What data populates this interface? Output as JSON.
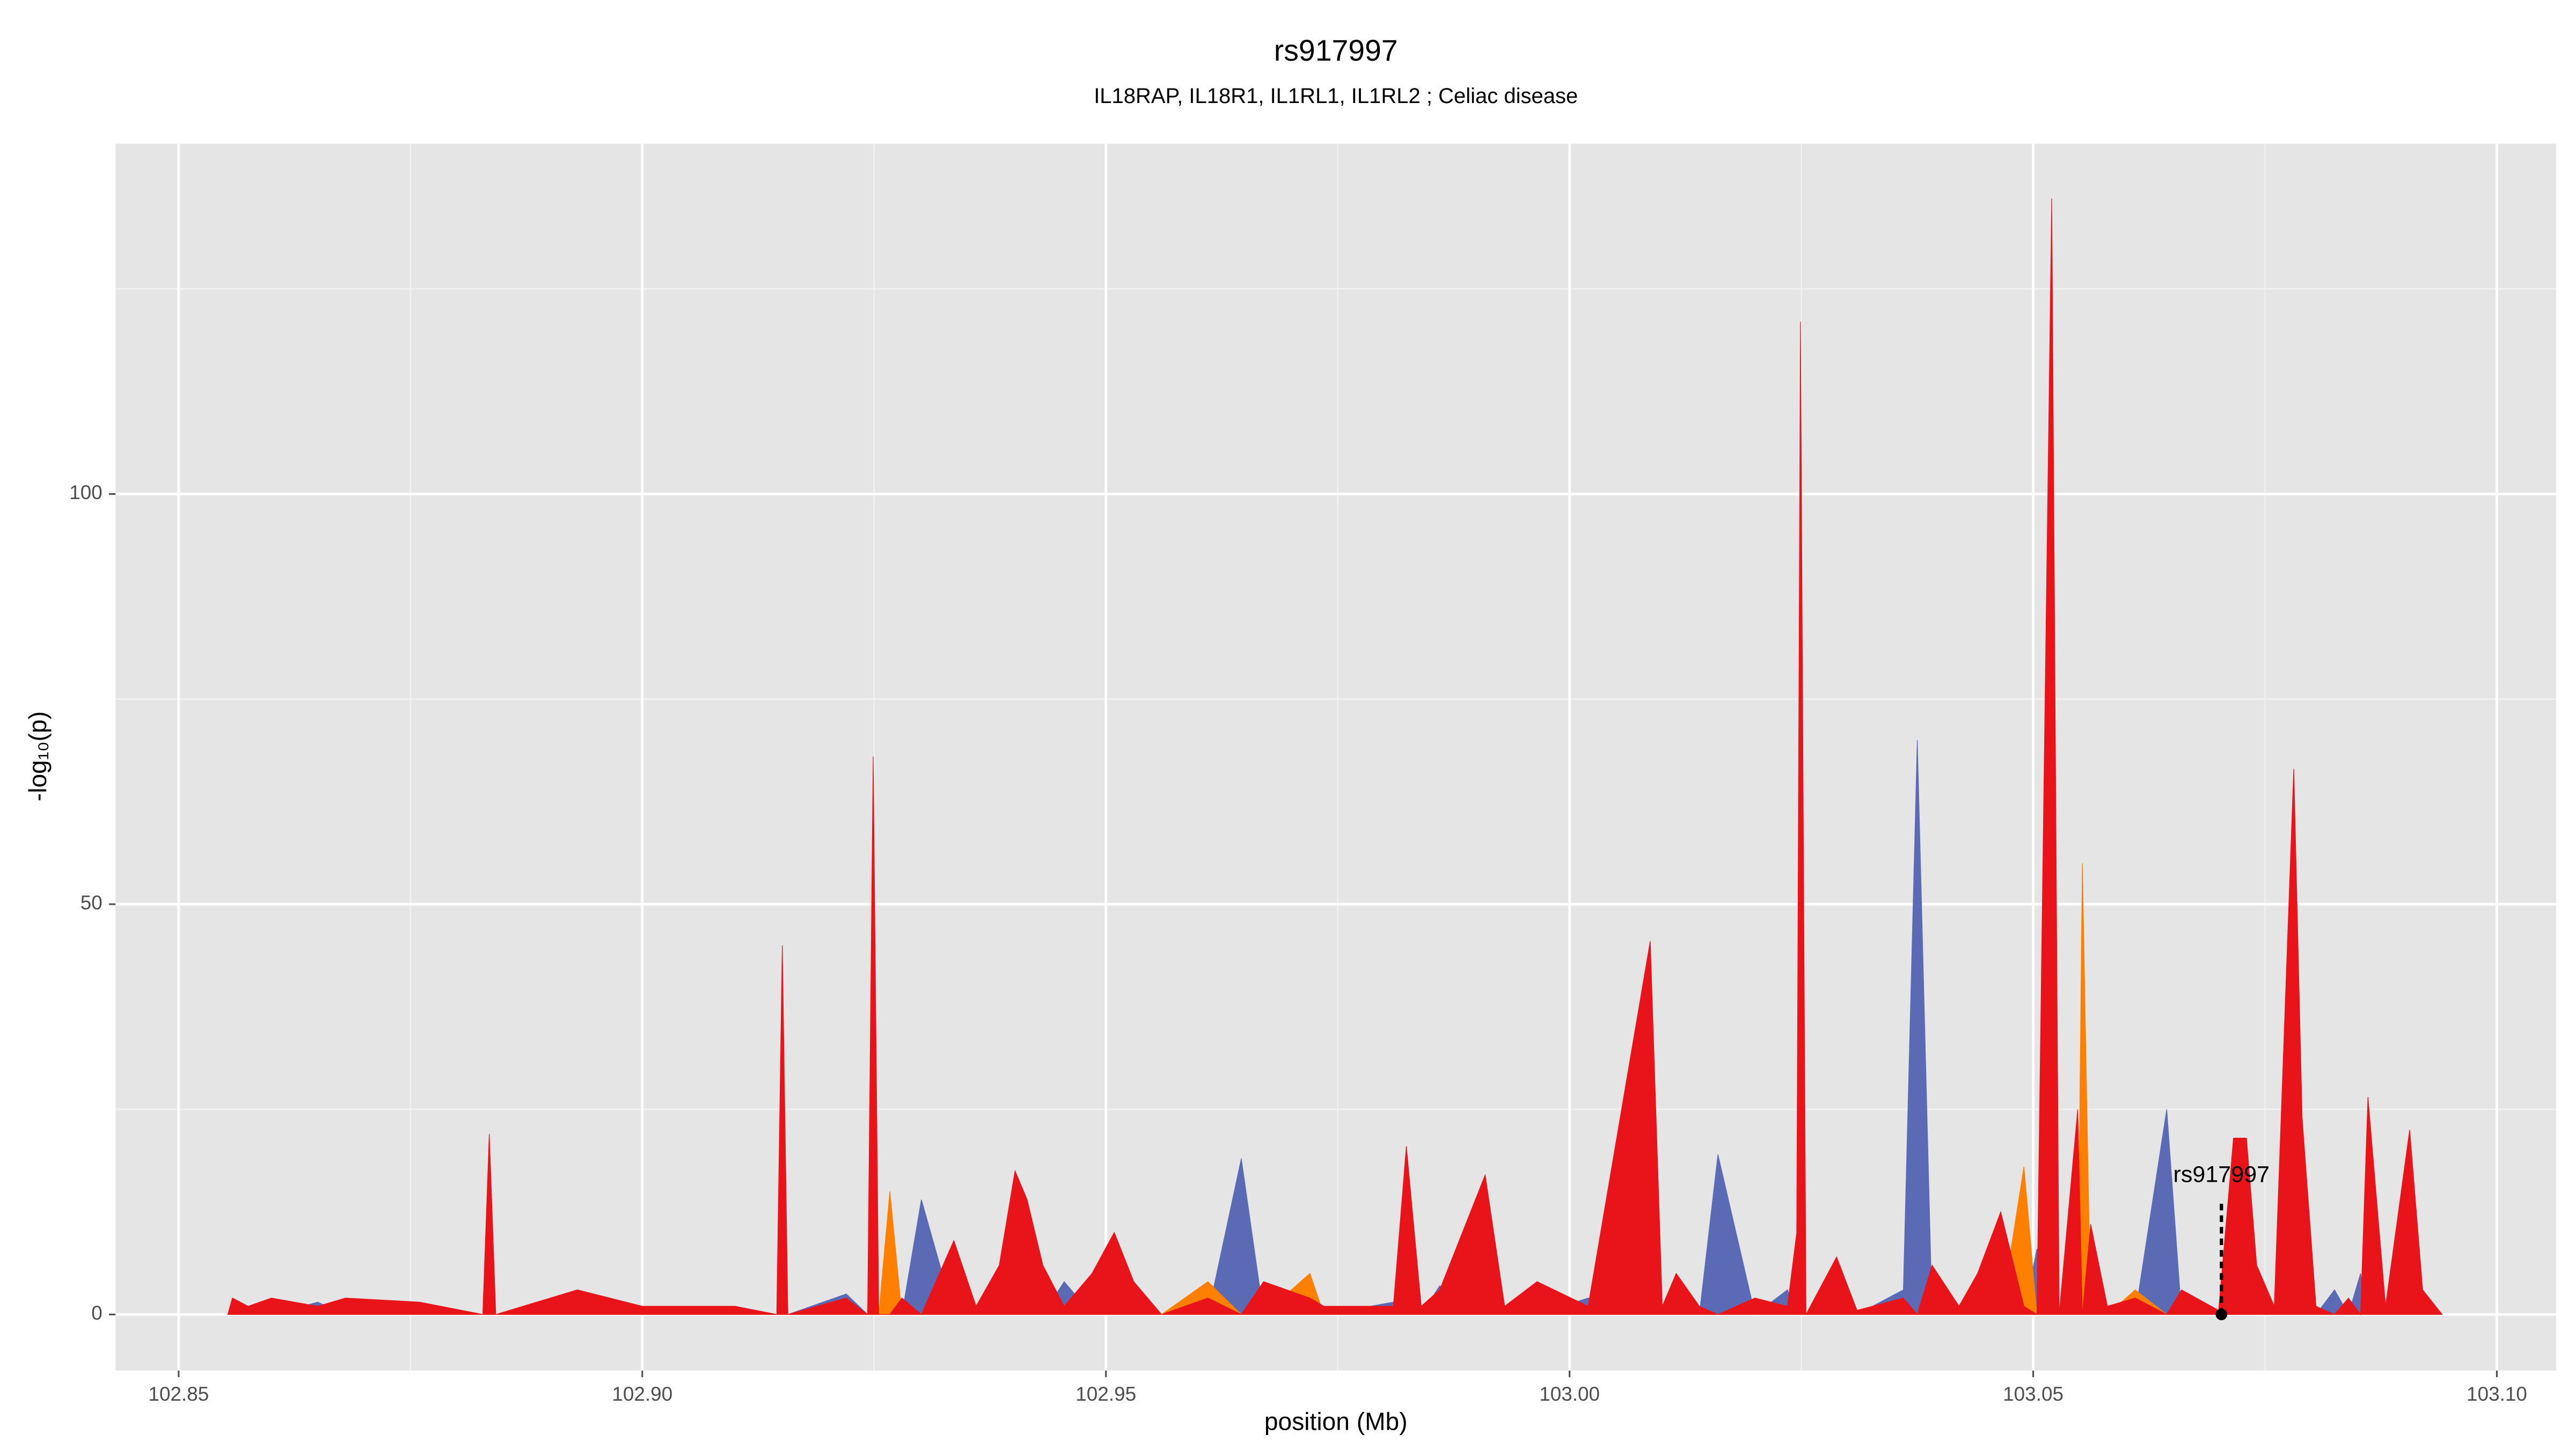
{
  "chart_data": {
    "type": "area",
    "title": "rs917997",
    "subtitle": "IL18RAP, IL18R1, IL1RL1, IL1RL2 ; Celiac disease",
    "x_label": "position (Mb)",
    "y_label": "-log₁₀(p)",
    "xlim": [
      102.8432,
      103.1064
    ],
    "ylim": [
      -6.84,
      142.7
    ],
    "xticks": [
      {
        "value": 102.85,
        "label": "102.85"
      },
      {
        "value": 102.9,
        "label": "102.90"
      },
      {
        "value": 102.95,
        "label": "102.95"
      },
      {
        "value": 103.0,
        "label": "103.00"
      },
      {
        "value": 103.05,
        "label": "103.05"
      },
      {
        "value": 103.1,
        "label": "103.10"
      }
    ],
    "yticks": [
      0,
      50,
      100
    ],
    "minor_xticks": [
      102.875,
      102.925,
      102.975,
      103.025,
      103.075
    ],
    "minor_yticks": [
      25,
      75,
      125
    ],
    "grid": true,
    "background": "#e5e5e5",
    "x": [
      102.8553,
      102.8558,
      102.8575,
      102.86,
      102.865,
      102.868,
      102.876,
      102.8828,
      102.8835,
      102.8842,
      102.893,
      102.9,
      102.91,
      102.9145,
      102.9151,
      102.9157,
      102.922,
      102.9243,
      102.9249,
      102.9255,
      102.9267,
      102.928,
      102.9301,
      102.9336,
      102.936,
      102.9385,
      102.9402,
      102.9415,
      102.9432,
      102.9455,
      102.9485,
      102.9509,
      102.953,
      102.956,
      102.961,
      102.9646,
      102.967,
      102.972,
      102.9735,
      102.981,
      102.9824,
      102.984,
      102.986,
      102.9909,
      102.993,
      102.9965,
      103.002,
      103.0087,
      103.01,
      103.0115,
      103.014,
      103.016,
      103.02,
      103.0235,
      103.0245,
      103.0249,
      103.0255,
      103.0288,
      103.031,
      103.036,
      103.0375,
      103.0391,
      103.042,
      103.044,
      103.0465,
      103.049,
      103.0504,
      103.052,
      103.0528,
      103.0548,
      103.0553,
      103.0562,
      103.058,
      103.061,
      103.0644,
      103.066,
      103.07,
      103.0716,
      103.073,
      103.0741,
      103.076,
      103.0781,
      103.079,
      103.0805,
      103.0825,
      103.084,
      103.0853,
      103.0861,
      103.088,
      103.0906,
      103.092,
      103.0941
    ],
    "series": [
      {
        "color": "#5a6ab4",
        "values": [
          0,
          0,
          0,
          0,
          1.5,
          0,
          0,
          0,
          0,
          0,
          0,
          0,
          0,
          0,
          0,
          0,
          2.5,
          0,
          0,
          0,
          0,
          0,
          14,
          0,
          0,
          0,
          0,
          0,
          0,
          4,
          0,
          0,
          0,
          0,
          0,
          19,
          0,
          0,
          0,
          1.5,
          0,
          0,
          3.5,
          0,
          0,
          0,
          2,
          0,
          0,
          0,
          0,
          19.5,
          0,
          3,
          0,
          0,
          0,
          0,
          0,
          3,
          70,
          0,
          0,
          0,
          0,
          0,
          8,
          0,
          0,
          0,
          0,
          0,
          0,
          0,
          25,
          0,
          0,
          0,
          0,
          0,
          0,
          0,
          0,
          0,
          3,
          0,
          5,
          0,
          0,
          0,
          0,
          0
        ]
      },
      {
        "color": "#ff7f00",
        "values": [
          0,
          0,
          0,
          0,
          0,
          0,
          0,
          0,
          0,
          0,
          0,
          0,
          0,
          0,
          0,
          0,
          0,
          0,
          0,
          0,
          15,
          0,
          0,
          0,
          0,
          0,
          0,
          0,
          0,
          0,
          5,
          0,
          0,
          0,
          4,
          0,
          0,
          5,
          0,
          0,
          0,
          0,
          0,
          0,
          0,
          0,
          0,
          0,
          0,
          0,
          0,
          0,
          0,
          0,
          0,
          0,
          0,
          0,
          0,
          0,
          0,
          0,
          0,
          0,
          0,
          18,
          0,
          0,
          0,
          0,
          55,
          0,
          0,
          3,
          0,
          0,
          0,
          0,
          0,
          0,
          0,
          0,
          0,
          0,
          0,
          1,
          0,
          0,
          0,
          0,
          0,
          0
        ]
      },
      {
        "color": "#e8141a",
        "values": [
          0,
          2,
          1,
          2,
          1,
          2,
          1.5,
          0,
          22,
          0,
          3,
          1,
          1,
          0,
          45,
          0,
          2,
          0,
          68,
          0,
          0,
          2,
          0,
          9,
          1,
          6,
          17.5,
          14,
          6,
          1,
          5,
          10,
          4,
          0,
          2,
          0,
          4,
          2,
          1,
          1,
          20.5,
          1,
          3,
          17,
          1,
          4,
          1,
          45.5,
          1,
          5,
          1,
          0,
          2,
          1,
          10,
          121,
          0,
          7,
          0.5,
          2,
          0,
          6,
          1,
          5,
          12.5,
          1,
          0,
          136,
          0,
          25,
          0,
          11,
          1,
          2,
          0,
          3,
          0.5,
          21.5,
          21.5,
          6,
          1,
          66.5,
          24,
          1,
          0,
          2,
          0,
          26.5,
          1,
          22.5,
          3,
          0
        ]
      }
    ],
    "annotation": {
      "label": "rs917997",
      "x": 103.0703,
      "y": 0,
      "label_y": 16.9,
      "line_top": 14
    }
  }
}
